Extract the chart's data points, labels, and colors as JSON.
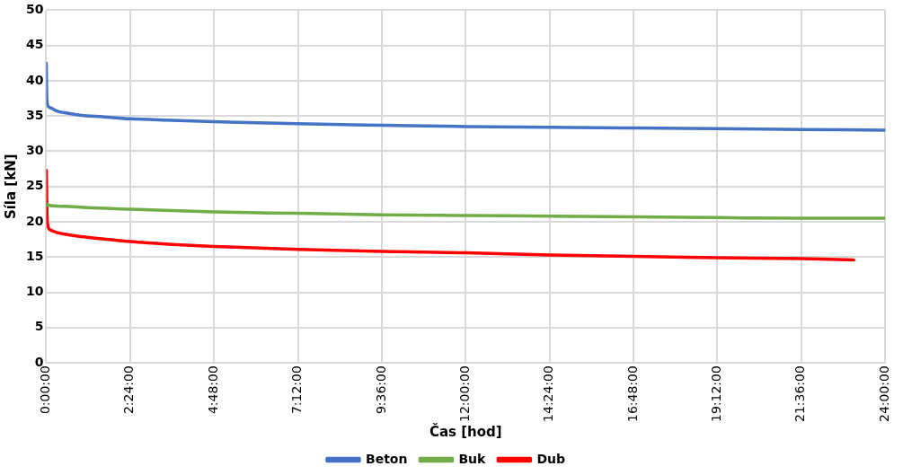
{
  "chart_data": {
    "type": "line",
    "xlabel": "Čas [hod]",
    "ylabel": "Síla [kN]",
    "xlim": [
      0,
      24
    ],
    "ylim": [
      0,
      50
    ],
    "xticks": [
      {
        "value": 0,
        "label": "0:00:00"
      },
      {
        "value": 2.4,
        "label": "2:24:00"
      },
      {
        "value": 4.8,
        "label": "4:48:00"
      },
      {
        "value": 7.2,
        "label": "7:12:00"
      },
      {
        "value": 9.6,
        "label": "9:36:00"
      },
      {
        "value": 12,
        "label": "12:00:00"
      },
      {
        "value": 14.4,
        "label": "14:24:00"
      },
      {
        "value": 16.8,
        "label": "16:48:00"
      },
      {
        "value": 19.2,
        "label": "19:12:00"
      },
      {
        "value": 21.6,
        "label": "21:36:00"
      },
      {
        "value": 24,
        "label": "24:00:00"
      }
    ],
    "yticks": [
      0,
      5,
      10,
      15,
      20,
      25,
      30,
      35,
      40,
      45,
      50
    ],
    "grid": true,
    "legend": "bottom",
    "marker": "none",
    "line_style": "solid",
    "series": [
      {
        "name": "Beton",
        "color": "#4472c4",
        "x": [
          0,
          0.02,
          0.1,
          0.3,
          0.6,
          1,
          1.6,
          2.4,
          3.6,
          4.8,
          7.2,
          9.6,
          12,
          14.4,
          16.8,
          19.2,
          21.6,
          24
        ],
        "values": [
          42.5,
          37,
          36.2,
          35.7,
          35.4,
          35.1,
          34.9,
          34.6,
          34.4,
          34.2,
          33.9,
          33.7,
          33.5,
          33.4,
          33.3,
          33.2,
          33.1,
          33
        ]
      },
      {
        "name": "Buk",
        "color": "#70ad47",
        "x": [
          0,
          0.02,
          0.5,
          1.2,
          2.4,
          4.8,
          7.2,
          9.6,
          12,
          14.4,
          16.8,
          19.2,
          21.6,
          24
        ],
        "values": [
          22.5,
          22.4,
          22.2,
          22,
          21.8,
          21.4,
          21.2,
          21,
          20.9,
          20.8,
          20.7,
          20.6,
          20.5,
          20.5
        ]
      },
      {
        "name": "Dub",
        "color": "#ff0000",
        "x": [
          0,
          0.03,
          0.1,
          0.3,
          0.6,
          1,
          1.6,
          2.4,
          3.6,
          4.8,
          7.2,
          9.6,
          12,
          14.4,
          16.8,
          19.2,
          21.6,
          23.1
        ],
        "values": [
          27.3,
          20,
          18.9,
          18.5,
          18.2,
          17.9,
          17.6,
          17.2,
          16.8,
          16.5,
          16.1,
          15.8,
          15.6,
          15.3,
          15.1,
          14.9,
          14.8,
          14.6
        ]
      }
    ]
  }
}
